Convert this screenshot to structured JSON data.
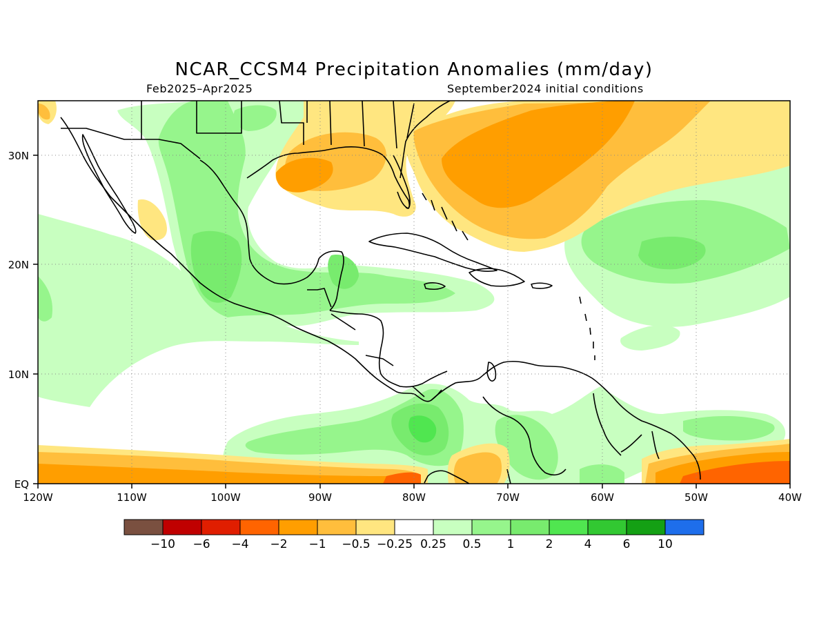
{
  "title": "NCAR_CCSM4 Precipitation Anomalies (mm/day)",
  "period": "Feb2025–Apr2025",
  "init": "September2024 initial conditions",
  "map": {
    "lon_range": [
      -120,
      -40
    ],
    "lat_range": [
      0,
      35
    ],
    "lon_ticks": [
      "120W",
      "110W",
      "100W",
      "90W",
      "80W",
      "70W",
      "60W",
      "50W",
      "40W"
    ],
    "lat_ticks": [
      "EQ",
      "10N",
      "20N",
      "30N"
    ],
    "gridlines": "dotted"
  },
  "colorbar": {
    "colors": [
      "#7a5040",
      "#c00000",
      "#e01e00",
      "#ff6400",
      "#ff9e00",
      "#ffbe3c",
      "#ffe680",
      "#ffffff",
      "#c8ffc0",
      "#96f58c",
      "#78eb6e",
      "#50e650",
      "#32c832",
      "#14a014",
      "#1e6eeb"
    ],
    "labels": [
      "−10",
      "−6",
      "−4",
      "−2",
      "−1",
      "−0.5",
      "−0.25",
      "0.25",
      "0.5",
      "1",
      "2",
      "4",
      "6",
      "10"
    ]
  }
}
